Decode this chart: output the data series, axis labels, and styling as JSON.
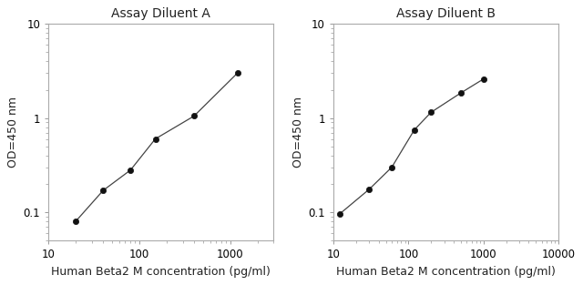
{
  "chart_A": {
    "title": "Assay Diluent A",
    "x": [
      20,
      40,
      80,
      150,
      400,
      1200
    ],
    "y": [
      0.08,
      0.17,
      0.28,
      0.6,
      1.05,
      3.0
    ],
    "xlim": [
      10,
      3000
    ],
    "ylim": [
      0.05,
      10
    ],
    "xticks": [
      10,
      100,
      1000
    ],
    "yticks": [
      0.1,
      1,
      10
    ],
    "xlabel": "Human Beta2 M concentration (pg/ml)",
    "ylabel": "OD=450 nm"
  },
  "chart_B": {
    "title": "Assay Diluent B",
    "x": [
      12,
      30,
      60,
      120,
      200,
      500,
      1000
    ],
    "y": [
      0.095,
      0.175,
      0.3,
      0.75,
      1.15,
      1.85,
      2.6
    ],
    "xlim": [
      10,
      10000
    ],
    "ylim": [
      0.05,
      10
    ],
    "xticks": [
      10,
      100,
      1000,
      10000
    ],
    "yticks": [
      0.1,
      1,
      10
    ],
    "xlabel": "Human Beta2 M concentration (pg/ml)",
    "ylabel": "OD=450 nm"
  },
  "line_color": "#444444",
  "marker_color": "#111111",
  "bg_color": "#ffffff",
  "title_fontsize": 10,
  "label_fontsize": 9,
  "tick_fontsize": 8.5
}
